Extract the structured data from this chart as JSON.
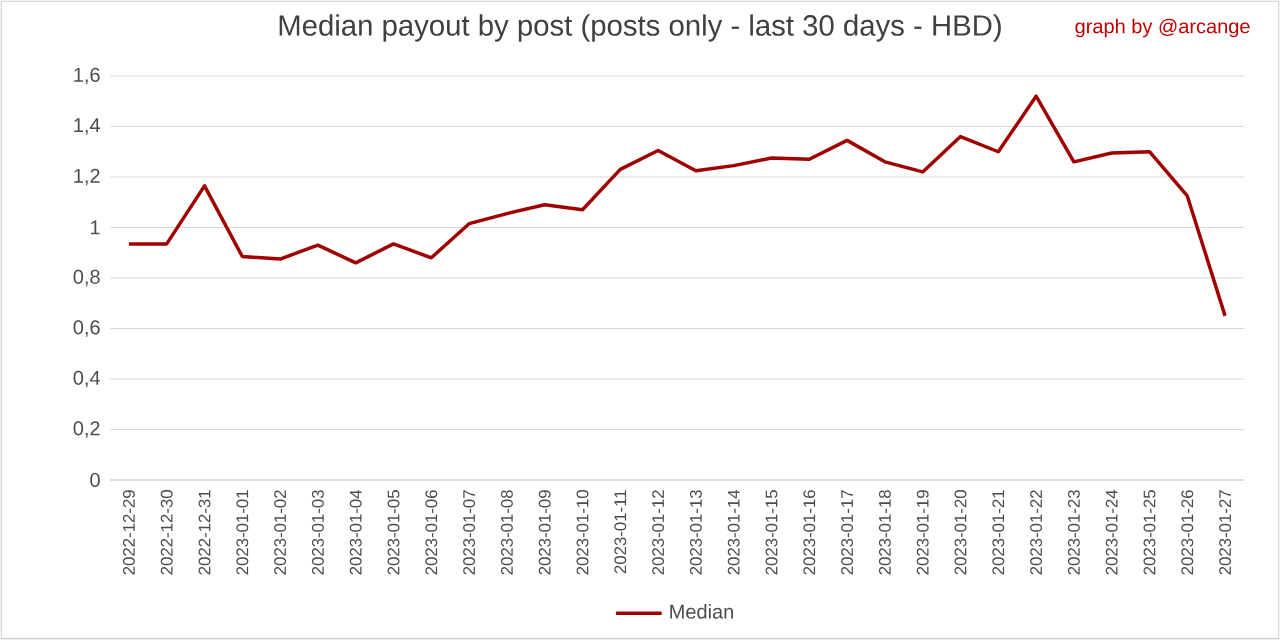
{
  "chart_data": {
    "type": "line",
    "title": "Median payout by post (posts only - last 30 days - HBD)",
    "annotations": [
      "graph by @arcange"
    ],
    "categories": [
      "2022-12-29",
      "2022-12-30",
      "2022-12-31",
      "2023-01-01",
      "2023-01-02",
      "2023-01-03",
      "2023-01-04",
      "2023-01-05",
      "2023-01-06",
      "2023-01-07",
      "2023-01-08",
      "2023-01-09",
      "2023-01-10",
      "2023-01-11",
      "2023-01-12",
      "2023-01-13",
      "2023-01-14",
      "2023-01-15",
      "2023-01-16",
      "2023-01-17",
      "2023-01-18",
      "2023-01-19",
      "2023-01-20",
      "2023-01-21",
      "2023-01-22",
      "2023-01-23",
      "2023-01-24",
      "2023-01-25",
      "2023-01-26",
      "2023-01-27"
    ],
    "series": [
      {
        "name": "Median",
        "color": "#a00000",
        "values": [
          0.935,
          0.935,
          1.165,
          0.885,
          0.875,
          0.93,
          0.86,
          0.935,
          0.88,
          1.015,
          1.055,
          1.09,
          1.07,
          1.23,
          1.305,
          1.225,
          1.245,
          1.275,
          1.27,
          1.345,
          1.26,
          1.22,
          1.36,
          1.3,
          1.52,
          1.26,
          1.295,
          1.3,
          1.125,
          0.65
        ]
      }
    ],
    "ylim": [
      0,
      1.6
    ],
    "yticks": [
      0,
      {
        "value": 0.2,
        "label": "0,2"
      },
      {
        "value": 0.4,
        "label": "0,4"
      },
      {
        "value": 0.6,
        "label": "0,6"
      },
      {
        "value": 0.8,
        "label": "0,8"
      },
      1,
      {
        "value": 1.2,
        "label": "1,2"
      },
      {
        "value": 1.4,
        "label": "1,4"
      },
      {
        "value": 1.6,
        "label": "1,6"
      }
    ],
    "grid": "y",
    "legend": "bottom"
  }
}
